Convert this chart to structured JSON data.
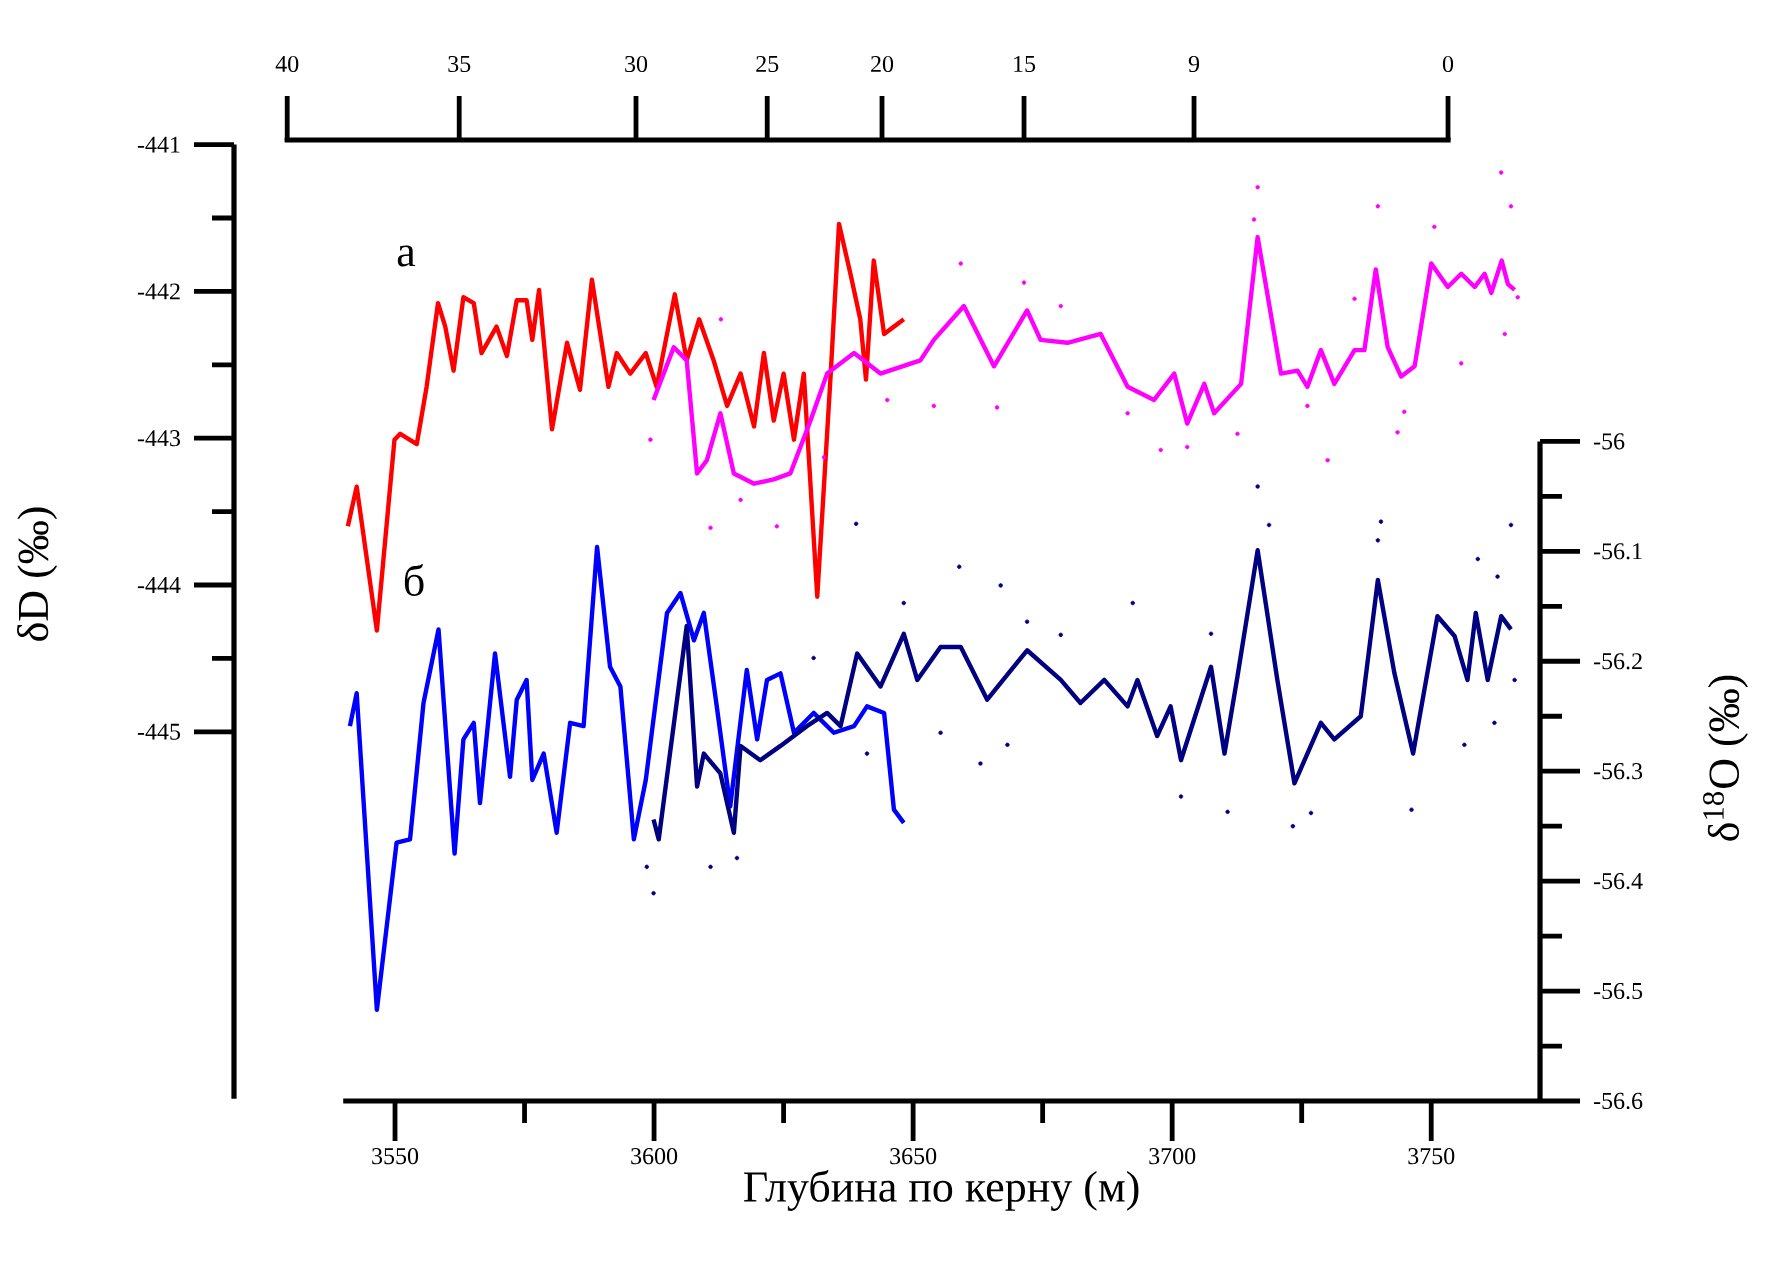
{
  "chart_data": {
    "type": "line",
    "xlabel": "Глубина по керну (м)",
    "ylabel": "δD (‰)",
    "y2label": "δ$^{18}$O (‰)",
    "xlim": [
      3540,
      3771
    ],
    "xticks": [
      3550,
      3600,
      3650,
      3700,
      3750
    ],
    "ylim": [
      -447.5,
      -441
    ],
    "yticks": [
      {
        "value": -445,
        "label": "-445"
      },
      {
        "value": -444,
        "label": "-444"
      },
      {
        "value": -443,
        "label": "-443"
      },
      {
        "value": -442,
        "label": "-442"
      },
      {
        "value": -441,
        "label": "-441"
      }
    ],
    "y2lim": [
      -56.6,
      -56
    ],
    "y2ticks": [
      {
        "value": -56.6,
        "label": "-56.6"
      },
      {
        "value": -56.5,
        "label": "-56.5"
      },
      {
        "value": -56.4,
        "label": "-56.4"
      },
      {
        "value": -56.3,
        "label": "-56.3"
      },
      {
        "value": -56.2,
        "label": "-56.2"
      },
      {
        "value": -56.1,
        "label": "-56.1"
      },
      {
        "value": -56,
        "label": "-56"
      }
    ],
    "annotations": [
      "а",
      "б",
      "40",
      "35",
      "30",
      "25",
      "20",
      "15",
      "9",
      "0"
    ],
    "series": [
      {
        "color": "#ff0000",
        "x": [
          3540.9,
          3542.6,
          3546.5,
          3549.9,
          3551.0,
          3554.2,
          3556.1,
          3558.3,
          3559.7,
          3561.3,
          3563.2,
          3565.2,
          3566.7,
          3569.6,
          3571.6,
          3573.5,
          3575.4,
          3576.5,
          3577.8,
          3580.3,
          3583.2,
          3585.7,
          3588.0,
          3591.2,
          3592.8,
          3595.4,
          3598.4,
          3600.5,
          3604.0,
          3606.3,
          3608.7,
          3611.5,
          3614.1,
          3616.7,
          3619.3,
          3621.2,
          3623.1,
          3625.0,
          3627.0,
          3628.9,
          3631.5,
          3634.1,
          3635.7,
          3637.9,
          3639.8,
          3640.9,
          3642.4,
          3644.4,
          3646.3,
          3648.2
        ],
        "values": [
          -443.6,
          -443.33,
          -444.31,
          -443.01,
          -442.97,
          -443.04,
          -442.65,
          -442.08,
          -442.24,
          -442.54,
          -442.04,
          -442.08,
          -442.42,
          -442.24,
          -442.44,
          -442.06,
          -442.06,
          -442.33,
          -441.99,
          -442.94,
          -442.35,
          -442.67,
          -441.92,
          -442.65,
          -442.42,
          -442.56,
          -442.42,
          -442.65,
          -442.02,
          -442.47,
          -442.19,
          -442.47,
          -442.78,
          -442.56,
          -442.92,
          -442.42,
          -442.88,
          -442.56,
          -443.01,
          -442.56,
          -444.08,
          -442.56,
          -441.54,
          -441.88,
          -442.19,
          -442.6,
          -441.79,
          -442.29,
          -442.24,
          -442.19
        ]
      },
      {
        "color": "#ff00ff",
        "x": [
          3599.9,
          3603.8,
          3606.3,
          3608.3,
          3610.2,
          3612.8,
          3615.4,
          3619.3,
          3623.1,
          3626.3,
          3630.2,
          3633.4,
          3638.6,
          3643.7,
          3651.4,
          3654.0,
          3659.8,
          3665.6,
          3672.0,
          3674.6,
          3679.8,
          3686.2,
          3691.4,
          3696.5,
          3700.4,
          3702.9,
          3706.2,
          3708.1,
          3713.3,
          3716.5,
          3721.0,
          3724.2,
          3726.1,
          3728.7,
          3731.3,
          3735.2,
          3737.1,
          3739.3,
          3741.6,
          3744.2,
          3746.8,
          3750.0,
          3753.2,
          3755.8,
          3758.4,
          3760.3,
          3761.6,
          3763.6,
          3764.8,
          3766.1
        ],
        "values": [
          -442.74,
          -442.38,
          -442.47,
          -443.24,
          -443.15,
          -442.83,
          -443.24,
          -443.31,
          -443.28,
          -443.24,
          -442.88,
          -442.56,
          -442.42,
          -442.56,
          -442.47,
          -442.33,
          -442.1,
          -442.51,
          -442.13,
          -442.33,
          -442.35,
          -442.29,
          -442.65,
          -442.74,
          -442.56,
          -442.9,
          -442.63,
          -442.83,
          -442.63,
          -441.63,
          -442.56,
          -442.54,
          -442.65,
          -442.4,
          -442.63,
          -442.4,
          -442.4,
          -441.85,
          -442.38,
          -442.58,
          -442.51,
          -441.81,
          -441.97,
          -441.88,
          -441.97,
          -441.88,
          -442.01,
          -441.79,
          -441.95,
          -441.99
        ]
      },
      {
        "type": "scatter",
        "color": "#ff00ff",
        "x": [
          3716.5,
          3739.7,
          3763.5,
          3765.4,
          3750.6,
          3715.8,
          3659.2,
          3671.4,
          3730.0,
          3697.8,
          3712.6,
          3743.5,
          3666.2,
          3702.9,
          3610.9,
          3623.7,
          3599.3,
          3654.0,
          3678.5,
          3755.8,
          3766.7,
          3744.8,
          3645.0,
          3612.9,
          3764.2,
          3691.4,
          3735.2,
          3632.8,
          3616.7,
          3726.1
        ],
        "values": [
          -441.29,
          -441.42,
          -441.19,
          -441.42,
          -441.56,
          -441.51,
          -441.81,
          -441.94,
          -443.15,
          -443.08,
          -442.97,
          -442.96,
          -442.79,
          -443.06,
          -443.61,
          -443.6,
          -443.01,
          -442.78,
          -442.1,
          -442.49,
          -442.04,
          -442.82,
          -442.74,
          -442.19,
          -442.29,
          -442.83,
          -442.05,
          -443.13,
          -443.42,
          -442.78
        ]
      },
      {
        "axis": "y2",
        "color": "#0000ff",
        "x": [
          3541.3,
          3542.6,
          3546.5,
          3550.3,
          3552.9,
          3555.5,
          3558.4,
          3561.5,
          3563.2,
          3565.2,
          3566.4,
          3569.3,
          3572.2,
          3573.5,
          3575.4,
          3576.5,
          3578.7,
          3581.2,
          3583.8,
          3586.4,
          3589.0,
          3591.5,
          3593.5,
          3596.1,
          3598.4,
          3602.5,
          3605.1,
          3607.7,
          3609.6,
          3612.1,
          3614.7,
          3617.9,
          3619.9,
          3621.8,
          3624.4,
          3627.0,
          3630.8,
          3634.7,
          3638.6,
          3641.1,
          3644.4,
          3646.3,
          3648.2
        ],
        "values": [
          -56.259,
          -56.229,
          -56.517,
          -56.365,
          -56.362,
          -56.238,
          -56.171,
          -56.375,
          -56.271,
          -56.256,
          -56.329,
          -56.193,
          -56.305,
          -56.235,
          -56.217,
          -56.308,
          -56.284,
          -56.356,
          -56.256,
          -56.259,
          -56.096,
          -56.205,
          -56.223,
          -56.362,
          -56.308,
          -56.156,
          -56.138,
          -56.181,
          -56.156,
          -56.241,
          -56.332,
          -56.208,
          -56.271,
          -56.217,
          -56.211,
          -56.265,
          -56.247,
          -56.265,
          -56.259,
          -56.241,
          -56.247,
          -56.335,
          -56.347
        ]
      },
      {
        "axis": "y2",
        "color": "#000080",
        "x": [
          3599.9,
          3600.9,
          3606.3,
          3608.3,
          3609.6,
          3612.8,
          3615.4,
          3616.7,
          3620.5,
          3624.4,
          3629.5,
          3633.4,
          3636.0,
          3639.2,
          3643.7,
          3648.2,
          3650.8,
          3655.3,
          3659.2,
          3664.3,
          3672.0,
          3678.5,
          3682.3,
          3686.9,
          3691.4,
          3693.3,
          3697.1,
          3699.7,
          3701.7,
          3707.5,
          3710.1,
          3712.6,
          3716.5,
          3720.3,
          3723.6,
          3728.7,
          3731.3,
          3736.4,
          3739.7,
          3742.9,
          3746.5,
          3751.2,
          3754.5,
          3757.0,
          3758.6,
          3760.9,
          3763.5,
          3765.4
        ],
        "values": [
          -56.344,
          -56.362,
          -56.168,
          -56.314,
          -56.284,
          -56.302,
          -56.356,
          -56.277,
          -56.29,
          -56.277,
          -56.259,
          -56.247,
          -56.259,
          -56.193,
          -56.223,
          -56.175,
          -56.217,
          -56.187,
          -56.187,
          -56.235,
          -56.19,
          -56.217,
          -56.238,
          -56.217,
          -56.241,
          -56.217,
          -56.268,
          -56.241,
          -56.29,
          -56.205,
          -56.284,
          -56.214,
          -56.099,
          -56.217,
          -56.311,
          -56.256,
          -56.271,
          -56.25,
          -56.126,
          -56.211,
          -56.284,
          -56.159,
          -56.177,
          -56.217,
          -56.156,
          -56.217,
          -56.159,
          -56.171
        ]
      },
      {
        "type": "scatter",
        "axis": "y2",
        "color": "#000080",
        "x": [
          3716.5,
          3718.7,
          3740.3,
          3739.7,
          3765.4,
          3759.0,
          3762.8,
          3723.3,
          3726.8,
          3710.7,
          3746.2,
          3701.7,
          3756.4,
          3762.2,
          3692.4,
          3668.2,
          3663.0,
          3678.5,
          3707.5,
          3766.1,
          3639.0,
          3658.9,
          3648.2,
          3599.9,
          3598.6,
          3610.9,
          3616.0,
          3655.3,
          3641.1,
          3630.8,
          3666.9,
          3672.0
        ],
        "values": [
          -56.041,
          -56.076,
          -56.073,
          -56.09,
          -56.076,
          -56.107,
          -56.123,
          -56.35,
          -56.338,
          -56.337,
          -56.335,
          -56.323,
          -56.276,
          -56.256,
          -56.147,
          -56.276,
          -56.293,
          -56.176,
          -56.175,
          -56.217,
          -56.075,
          -56.114,
          -56.147,
          -56.411,
          -56.387,
          -56.387,
          -56.379,
          -56.265,
          -56.284,
          -56.197,
          -56.131,
          -56.164
        ]
      }
    ]
  }
}
